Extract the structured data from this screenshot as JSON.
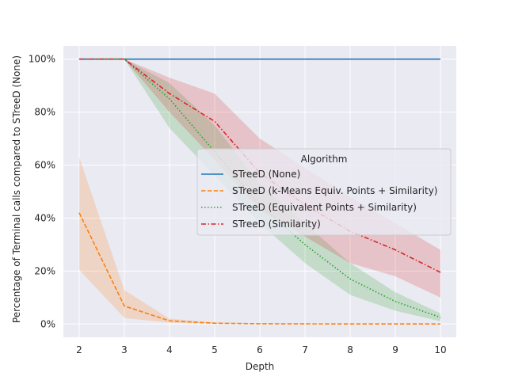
{
  "chart_data": {
    "type": "line",
    "xlabel": "Depth",
    "ylabel": "Percentage of Terminal calls compared to STreeD (None)",
    "x": [
      2,
      3,
      4,
      5,
      6,
      7,
      8,
      9,
      10
    ],
    "xlim": [
      1.65,
      10.35
    ],
    "ylim": [
      -5,
      105
    ],
    "y_ticks": [
      0,
      20,
      40,
      60,
      80,
      100
    ],
    "y_tick_labels": [
      "0%",
      "20%",
      "40%",
      "60%",
      "80%",
      "100%"
    ],
    "grid": true,
    "legend": {
      "title": "Algorithm",
      "placement": "center-right"
    },
    "series": [
      {
        "name": "STreeD (None)",
        "color": "#1f77b4",
        "dash": "solid",
        "values": [
          100,
          100,
          100,
          100,
          100,
          100,
          100,
          100,
          100
        ],
        "lower": [
          100,
          100,
          100,
          100,
          100,
          100,
          100,
          100,
          100
        ],
        "upper": [
          100,
          100,
          100,
          100,
          100,
          100,
          100,
          100,
          100
        ]
      },
      {
        "name": "STreeD (k-Means Equiv. Points + Similarity)",
        "color": "#ff7f0e",
        "dash": "dashed",
        "values": [
          42,
          6.8,
          1.2,
          0.3,
          0.1,
          0.05,
          0.03,
          0.02,
          0.01
        ],
        "lower": [
          20.5,
          2.3,
          0.5,
          0.1,
          0.05,
          0.02,
          0.01,
          0.01,
          0.0
        ],
        "upper": [
          63,
          12.8,
          2.0,
          0.6,
          0.3,
          0.2,
          0.1,
          0.05,
          0.03
        ]
      },
      {
        "name": "STreeD (Equivalent Points + Similarity)",
        "color": "#2ca02c",
        "dash": "dotted",
        "values": [
          100,
          100,
          85,
          65,
          45,
          30,
          17,
          8.5,
          2.5
        ],
        "lower": [
          100,
          100,
          74,
          56,
          38,
          23,
          11,
          5,
          1
        ],
        "upper": [
          100,
          100,
          91,
          75,
          53,
          38,
          23,
          12,
          4
        ]
      },
      {
        "name": "STreeD (Similarity)",
        "color": "#d62728",
        "dash": "dashdot",
        "values": [
          100,
          100,
          87,
          76.5,
          57,
          45,
          35,
          28,
          19.5
        ],
        "lower": [
          100,
          100,
          80,
          62,
          43,
          33,
          23,
          18,
          10
        ],
        "upper": [
          100,
          100,
          93,
          87,
          70,
          59,
          48,
          38,
          28
        ]
      }
    ]
  }
}
